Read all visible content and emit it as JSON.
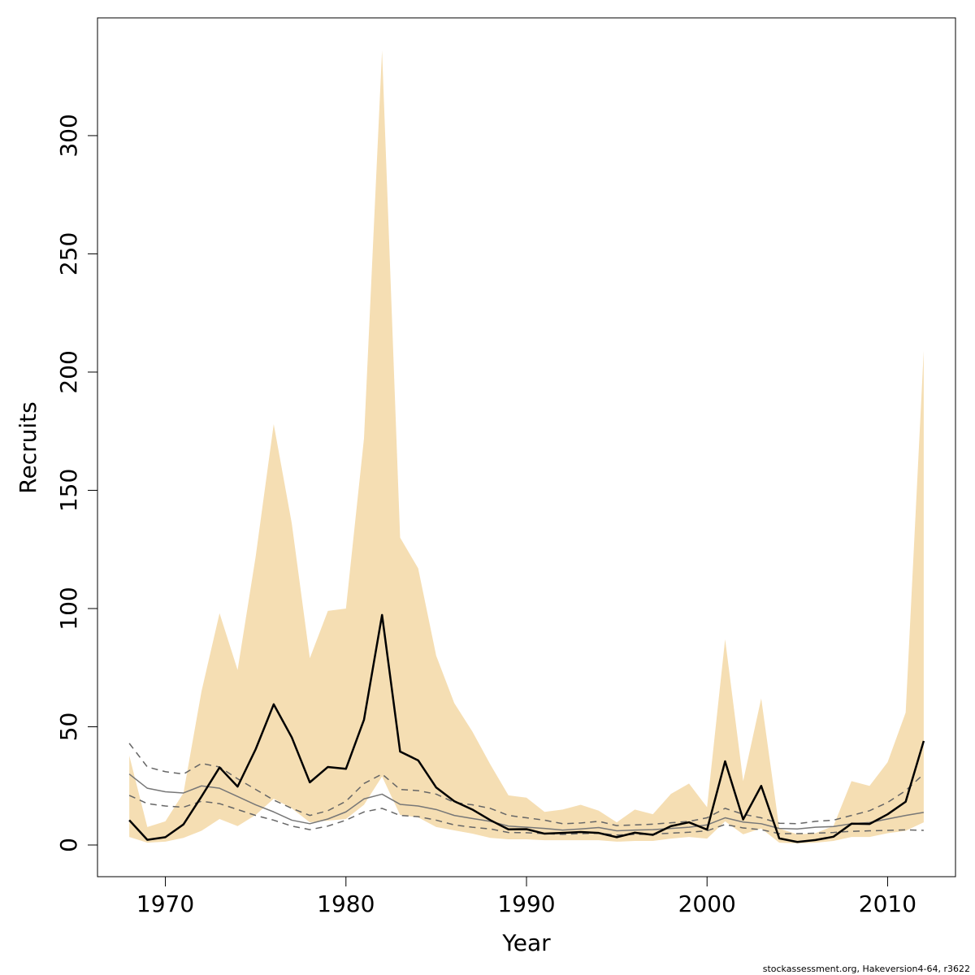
{
  "chart_data": {
    "type": "line",
    "xlabel": "Year",
    "ylabel": "Recruits",
    "footnote": "stockassessment.org, Hakeversion4-64, r3622",
    "x": [
      1968,
      1969,
      1970,
      1971,
      1972,
      1973,
      1974,
      1975,
      1976,
      1977,
      1978,
      1979,
      1980,
      1981,
      1982,
      1983,
      1984,
      1985,
      1986,
      1987,
      1988,
      1989,
      1990,
      1991,
      1992,
      1993,
      1994,
      1995,
      1996,
      1997,
      1998,
      1999,
      2000,
      2001,
      2002,
      2003,
      2004,
      2005,
      2006,
      2007,
      2008,
      2009,
      2010,
      2011,
      2012
    ],
    "xlim": [
      1966.24,
      2013.76
    ],
    "xticks": [
      1970,
      1980,
      1990,
      2000,
      2010
    ],
    "ylim": [
      -13.4,
      349.8
    ],
    "yticks": [
      0,
      50,
      100,
      150,
      200,
      250,
      300
    ],
    "band": {
      "color": "#f5deb3",
      "upper": [
        37.8,
        7.6,
        10,
        22,
        65,
        98,
        74,
        122,
        178,
        136,
        79,
        99,
        100,
        172,
        336,
        130,
        117,
        80,
        60,
        48,
        34,
        21,
        20,
        14,
        15,
        17,
        14.5,
        9.6,
        15,
        13,
        21.6,
        26,
        16,
        87,
        27,
        62,
        7,
        4.5,
        5,
        8,
        27,
        25,
        35,
        56,
        209
      ],
      "lower": [
        3.4,
        1,
        1.4,
        3,
        6,
        11,
        8,
        12.7,
        19.6,
        15.5,
        9.6,
        10.3,
        11,
        17,
        29,
        12.7,
        11.7,
        7.6,
        6.2,
        4.8,
        3,
        2.4,
        2.4,
        2,
        2,
        2,
        2,
        1.4,
        1.7,
        1.7,
        2.7,
        3.4,
        2.7,
        10,
        4.5,
        7,
        1,
        0.7,
        1,
        1.7,
        3.4,
        3.4,
        5,
        6,
        9.6
      ]
    },
    "series": [
      {
        "color": "#777777",
        "dash": false,
        "width": 1.5,
        "values": [
          30,
          24,
          22.5,
          22,
          25,
          24,
          20.5,
          17,
          14,
          10.5,
          9,
          11,
          14,
          19.5,
          21.5,
          17.2,
          16.5,
          15,
          12.5,
          11.2,
          10,
          8,
          7.5,
          7,
          6.3,
          6.8,
          7.4,
          6,
          6.3,
          6.5,
          7,
          7.5,
          8.5,
          11.5,
          9.7,
          9,
          7,
          6.8,
          7.5,
          7.8,
          9,
          9.5,
          11,
          12.5,
          13.8
        ]
      },
      {
        "color": "#666666",
        "dash": true,
        "width": 1.5,
        "values": [
          43,
          33,
          31,
          30,
          34.5,
          33,
          28,
          23.5,
          19,
          15.5,
          12.5,
          14.5,
          18.5,
          26,
          30,
          23.5,
          23,
          21.5,
          18,
          17,
          15.5,
          12.5,
          11.5,
          10.5,
          9,
          9.3,
          10,
          8.2,
          8.5,
          8.8,
          9.4,
          10,
          11.5,
          15.5,
          13,
          11.5,
          9.2,
          9,
          10,
          10.5,
          12.5,
          14.5,
          18,
          23,
          30
        ]
      },
      {
        "color": "#666666",
        "dash": true,
        "width": 1.5,
        "values": [
          21,
          17.5,
          16.5,
          16,
          18.5,
          17.5,
          15,
          12.5,
          10.5,
          8,
          6.5,
          8,
          10.5,
          14,
          15.5,
          12.5,
          12,
          10.5,
          8.5,
          7.5,
          6.8,
          5.3,
          5.2,
          4.8,
          4.5,
          4.8,
          5,
          4.2,
          4.5,
          4.6,
          5,
          5.4,
          6,
          8.7,
          7.2,
          6.5,
          4.8,
          4.8,
          5,
          5.3,
          5.8,
          6,
          6.2,
          6.4,
          6.2
        ]
      },
      {
        "color": "#000000",
        "dash": false,
        "width": 2.5,
        "values": [
          10.5,
          2.2,
          3.3,
          8.7,
          20.5,
          32.8,
          24.7,
          40.5,
          59.5,
          45.5,
          26.5,
          33,
          32.2,
          53,
          97.3,
          39.5,
          35.8,
          24.3,
          18.5,
          15,
          10.5,
          6.6,
          6.7,
          4.8,
          5.1,
          5.5,
          5.1,
          3.3,
          5.2,
          4.3,
          8,
          9.6,
          6.5,
          35.4,
          10.8,
          25,
          2.8,
          1.3,
          2.1,
          3.5,
          9,
          8.9,
          13,
          18.3,
          44
        ]
      }
    ]
  }
}
